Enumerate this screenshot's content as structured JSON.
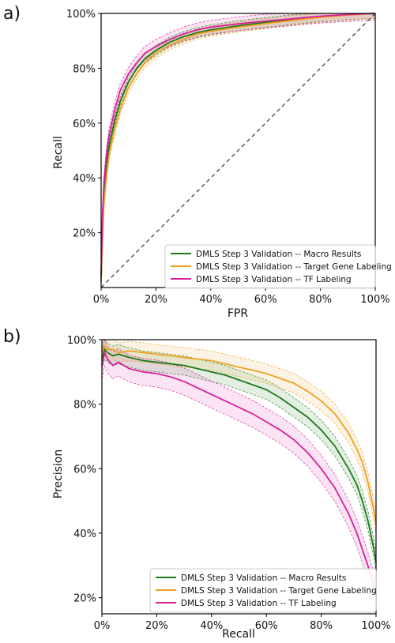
{
  "colors": {
    "macro": "#1a7a1a",
    "target": "#f0a020",
    "tf": "#d81f9a",
    "diagonal": "#333333",
    "axis": "#000000"
  },
  "chart_data": [
    {
      "panel_label": "a)",
      "type": "line",
      "xlabel": "FPR",
      "ylabel": "Recall",
      "xlim": [
        0,
        1
      ],
      "ylim": [
        0,
        1
      ],
      "x_ticks": [
        "0%",
        "20%",
        "40%",
        "60%",
        "80%",
        "100%"
      ],
      "y_ticks": [
        "20%",
        "40%",
        "60%",
        "80%",
        "100%"
      ],
      "legend_position": "lower right",
      "diagonal": true,
      "series": [
        {
          "name": "DMLS Step 3 Validation -- Macro Results",
          "color_key": "macro",
          "x": [
            0,
            0.005,
            0.01,
            0.02,
            0.03,
            0.05,
            0.07,
            0.1,
            0.13,
            0.16,
            0.2,
            0.25,
            0.3,
            0.35,
            0.4,
            0.5,
            0.6,
            0.7,
            0.8,
            0.9,
            1.0
          ],
          "y": [
            0.03,
            0.22,
            0.34,
            0.45,
            0.52,
            0.61,
            0.68,
            0.75,
            0.8,
            0.835,
            0.865,
            0.895,
            0.915,
            0.93,
            0.94,
            0.955,
            0.967,
            0.978,
            0.988,
            0.995,
            1.0
          ]
        },
        {
          "name": "DMLS Step 3 Validation -- Target Gene Labeling",
          "color_key": "target",
          "x": [
            0,
            0.005,
            0.01,
            0.02,
            0.03,
            0.05,
            0.07,
            0.1,
            0.13,
            0.16,
            0.2,
            0.25,
            0.3,
            0.35,
            0.4,
            0.5,
            0.6,
            0.7,
            0.8,
            0.9,
            1.0
          ],
          "y": [
            0.02,
            0.18,
            0.3,
            0.41,
            0.49,
            0.58,
            0.65,
            0.73,
            0.78,
            0.82,
            0.855,
            0.885,
            0.905,
            0.925,
            0.935,
            0.95,
            0.963,
            0.975,
            0.986,
            0.994,
            1.0
          ]
        },
        {
          "name": "DMLS Step 3 Validation -- TF Labeling",
          "color_key": "tf",
          "x": [
            0,
            0.005,
            0.01,
            0.02,
            0.03,
            0.05,
            0.07,
            0.1,
            0.13,
            0.16,
            0.2,
            0.25,
            0.3,
            0.35,
            0.4,
            0.5,
            0.6,
            0.7,
            0.8,
            0.9,
            1.0
          ],
          "y": [
            0.04,
            0.26,
            0.38,
            0.49,
            0.56,
            0.65,
            0.72,
            0.78,
            0.82,
            0.855,
            0.88,
            0.905,
            0.925,
            0.94,
            0.95,
            0.962,
            0.972,
            0.981,
            0.99,
            0.996,
            1.0
          ]
        }
      ]
    },
    {
      "panel_label": "b)",
      "type": "line",
      "xlabel": "Recall",
      "ylabel": "Precision",
      "xlim": [
        0,
        1
      ],
      "ylim": [
        0.15,
        1.0
      ],
      "x_ticks": [
        "0%",
        "20%",
        "40%",
        "60%",
        "80%",
        "100%"
      ],
      "y_ticks": [
        "20%",
        "40%",
        "60%",
        "80%",
        "100%"
      ],
      "legend_position": "lower right",
      "series": [
        {
          "name": "DMLS Step 3 Validation -- Macro Results",
          "color_key": "macro",
          "x": [
            0,
            0.01,
            0.02,
            0.04,
            0.06,
            0.1,
            0.15,
            0.2,
            0.25,
            0.3,
            0.35,
            0.4,
            0.45,
            0.5,
            0.55,
            0.6,
            0.65,
            0.7,
            0.75,
            0.8,
            0.85,
            0.9,
            0.93,
            0.95,
            0.97,
            0.99,
            1.0
          ],
          "y": [
            0.94,
            0.97,
            0.96,
            0.95,
            0.955,
            0.945,
            0.935,
            0.93,
            0.925,
            0.92,
            0.91,
            0.9,
            0.89,
            0.875,
            0.86,
            0.845,
            0.82,
            0.79,
            0.76,
            0.72,
            0.67,
            0.6,
            0.55,
            0.5,
            0.44,
            0.36,
            0.31
          ]
        },
        {
          "name": "DMLS Step 3 Validation -- Target Gene Labeling",
          "color_key": "target",
          "x": [
            0,
            0.01,
            0.02,
            0.04,
            0.06,
            0.1,
            0.15,
            0.2,
            0.25,
            0.3,
            0.35,
            0.4,
            0.45,
            0.5,
            0.55,
            0.6,
            0.65,
            0.7,
            0.75,
            0.8,
            0.85,
            0.9,
            0.93,
            0.95,
            0.97,
            0.99,
            1.0
          ],
          "y": [
            0.96,
            0.98,
            0.97,
            0.97,
            0.96,
            0.965,
            0.96,
            0.955,
            0.95,
            0.945,
            0.94,
            0.935,
            0.925,
            0.915,
            0.905,
            0.895,
            0.88,
            0.865,
            0.84,
            0.81,
            0.77,
            0.71,
            0.66,
            0.62,
            0.56,
            0.48,
            0.43
          ]
        },
        {
          "name": "DMLS Step 3 Validation -- TF Labeling",
          "color_key": "tf",
          "x": [
            0,
            0.01,
            0.02,
            0.04,
            0.06,
            0.1,
            0.15,
            0.2,
            0.25,
            0.3,
            0.35,
            0.4,
            0.45,
            0.5,
            0.55,
            0.6,
            0.65,
            0.7,
            0.75,
            0.8,
            0.85,
            0.9,
            0.93,
            0.95,
            0.97,
            0.99,
            1.0
          ],
          "y": [
            0.92,
            0.96,
            0.94,
            0.92,
            0.93,
            0.91,
            0.9,
            0.895,
            0.885,
            0.87,
            0.85,
            0.83,
            0.81,
            0.79,
            0.77,
            0.745,
            0.72,
            0.69,
            0.65,
            0.6,
            0.54,
            0.46,
            0.4,
            0.35,
            0.3,
            0.24,
            0.2
          ]
        }
      ]
    }
  ]
}
